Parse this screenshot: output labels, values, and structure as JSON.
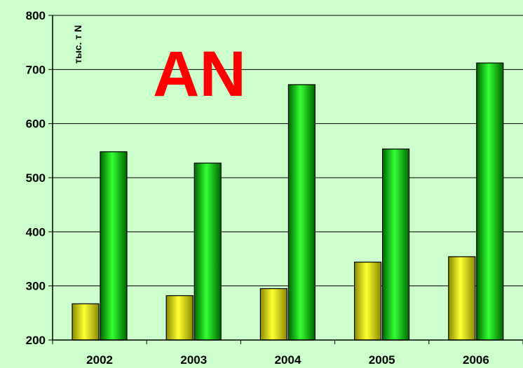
{
  "colors": {
    "background": "#ccffcc",
    "series_a": "#e8e800",
    "series_b": "#00cc00",
    "title": "#ff0000"
  },
  "chart_data": {
    "type": "bar",
    "title": "AN",
    "xlabel": "",
    "ylabel": "тыс. т N",
    "categories": [
      "2002",
      "2003",
      "2004",
      "2005",
      "2006"
    ],
    "series": [
      {
        "values": [
          267,
          282,
          295,
          344,
          354
        ]
      },
      {
        "values": [
          548,
          527,
          672,
          553,
          712
        ]
      }
    ],
    "ylim": [
      200,
      800
    ],
    "yticks": [
      200,
      300,
      400,
      500,
      600,
      700,
      800
    ],
    "grid": true,
    "legend": "none"
  }
}
